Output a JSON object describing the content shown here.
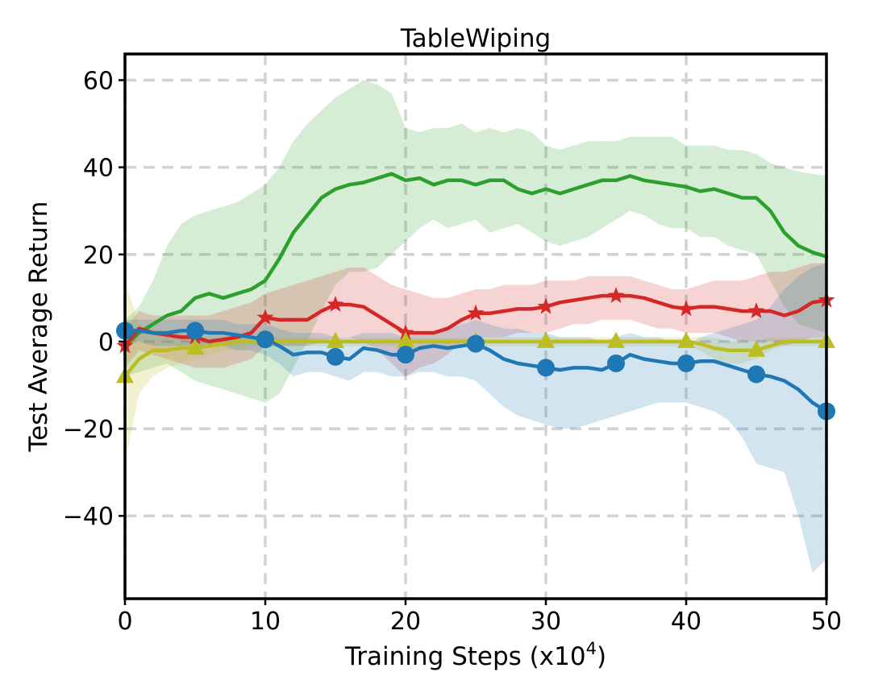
{
  "chart_data": {
    "type": "line",
    "title": "TableWiping",
    "xlabel": "Training Steps (x10",
    "xlabel_sup": "4",
    "xlabel_close": ")",
    "ylabel": "Test Average Return",
    "xlim": [
      0,
      50
    ],
    "ylim": [
      -59,
      66
    ],
    "xticks": [
      0,
      10,
      20,
      30,
      40,
      50
    ],
    "xtick_labels": [
      "0",
      "10",
      "20",
      "30",
      "40",
      "50"
    ],
    "yticks": [
      -40,
      -20,
      0,
      20,
      40,
      60
    ],
    "ytick_labels": [
      "−40",
      "−20",
      "0",
      "20",
      "40",
      "60"
    ],
    "grid": true,
    "x": [
      0,
      1,
      2,
      3,
      4,
      5,
      6,
      7,
      8,
      9,
      10,
      11,
      12,
      13,
      14,
      15,
      16,
      17,
      18,
      19,
      20,
      21,
      22,
      23,
      24,
      25,
      26,
      27,
      28,
      29,
      30,
      31,
      32,
      33,
      34,
      35,
      36,
      37,
      38,
      39,
      40,
      41,
      42,
      43,
      44,
      45,
      46,
      47,
      48,
      49,
      50
    ],
    "series": [
      {
        "name": "green",
        "color": "#2ca02c",
        "marker": "none",
        "mean": [
          -1,
          2,
          4,
          6,
          7,
          10,
          11,
          10,
          11,
          12,
          14,
          19,
          25,
          29,
          33,
          35,
          36,
          36.5,
          37.5,
          38.5,
          37,
          37.5,
          36,
          37,
          37,
          36,
          37,
          37,
          35,
          34,
          35,
          34,
          35,
          36,
          37,
          37,
          38,
          37,
          36.5,
          36,
          35.5,
          34.5,
          35,
          34,
          33,
          33,
          30,
          25,
          22,
          20.5,
          19.5
        ],
        "upper": [
          5,
          8,
          14,
          22,
          27,
          29,
          30,
          31,
          32,
          34,
          36,
          40,
          46,
          50,
          53,
          56,
          58,
          60,
          59,
          57,
          49,
          48,
          49,
          49,
          50,
          48,
          49,
          48,
          49,
          48,
          45,
          44,
          45,
          46,
          46,
          46,
          47,
          47,
          47,
          47,
          45,
          45,
          45,
          44,
          44,
          43,
          41,
          40,
          39,
          38.5,
          38
        ],
        "lower": [
          -8,
          -7,
          -6,
          -5,
          -7,
          -9,
          -10,
          -11,
          -12,
          -13,
          -14,
          -12,
          -6,
          0,
          7,
          13,
          16,
          16,
          17,
          20,
          23,
          26,
          28,
          26,
          27,
          28,
          25,
          26,
          27,
          25,
          23,
          22,
          23,
          24,
          26,
          28,
          30,
          29,
          27,
          26,
          26,
          24,
          24,
          22,
          21,
          20,
          14,
          8,
          4,
          3,
          2
        ]
      },
      {
        "name": "red",
        "color": "#d62728",
        "marker": "star",
        "mean": [
          -1,
          3,
          2,
          1.5,
          1,
          1,
          0,
          0.5,
          1,
          2,
          5.5,
          5,
          5,
          5,
          7,
          8.5,
          8.5,
          8,
          6,
          4,
          2,
          2,
          2,
          3,
          5,
          6.5,
          6.5,
          7,
          7.5,
          7.5,
          8,
          9,
          9.5,
          10,
          10.5,
          10.5,
          10.5,
          10,
          9,
          8,
          7.5,
          8,
          8,
          7.5,
          7,
          7,
          7,
          6,
          7,
          9,
          9.5
        ],
        "upper": [
          3,
          7,
          6,
          6,
          6,
          6,
          6,
          7,
          8,
          9,
          11,
          12,
          13,
          14,
          15,
          16,
          17,
          17,
          15,
          13,
          12,
          11,
          10,
          10,
          11,
          12,
          12,
          13,
          13,
          13,
          14,
          14,
          14,
          15,
          15,
          15,
          15,
          14,
          13,
          12,
          12,
          13,
          14,
          14,
          14,
          15,
          16,
          16,
          17,
          18,
          18
        ],
        "lower": [
          -6,
          -2,
          -3,
          -4,
          -5,
          -6,
          -6,
          -6,
          -5,
          -4,
          -1,
          -1,
          -1,
          -1,
          0,
          1,
          1,
          0,
          -2,
          -5,
          -8,
          -6,
          -5,
          -3,
          0,
          1,
          1,
          1,
          2,
          2,
          2,
          3,
          4,
          4,
          5,
          5,
          5,
          4,
          3,
          3,
          2,
          2,
          2,
          1,
          0,
          0,
          0,
          -1,
          0,
          1,
          1
        ]
      },
      {
        "name": "yellow",
        "color": "#bcbd22",
        "marker": "triangle",
        "mean": [
          -8,
          -4,
          -2,
          -2,
          -1.5,
          -1.5,
          -1,
          -0.5,
          0,
          0,
          0.5,
          0,
          0,
          0,
          0,
          0,
          0,
          0,
          0,
          0,
          0,
          0,
          0,
          0,
          0,
          0,
          0,
          0,
          0,
          0,
          0,
          0,
          0,
          0,
          0,
          0,
          0,
          0,
          0,
          0,
          0,
          -0.5,
          -1.5,
          -2,
          -2,
          -2,
          -1,
          0,
          0,
          0,
          0
        ],
        "upper": [
          14,
          4,
          3,
          2,
          2,
          1,
          1,
          1,
          1,
          1,
          1,
          1,
          1,
          1,
          1,
          1,
          1,
          1,
          1,
          1,
          1,
          1,
          1,
          1,
          1,
          1,
          1,
          1,
          1,
          1,
          1,
          1,
          1,
          1,
          1,
          1,
          1,
          1,
          1,
          1,
          1,
          1,
          1,
          0,
          0,
          0,
          1,
          1,
          1,
          1,
          1
        ],
        "lower": [
          -28,
          -12,
          -8,
          -6,
          -5,
          -4,
          -3,
          -2,
          -2,
          -1,
          -1,
          -1,
          -1,
          -1,
          -1,
          -1,
          -1,
          -1,
          -1,
          -1,
          -1,
          -1,
          -1,
          -1,
          -1,
          -1,
          -1,
          -1,
          -1,
          -1,
          -1,
          -1,
          -1,
          -1,
          -1,
          -1,
          -1,
          -1,
          -1,
          -1,
          -1,
          -2,
          -4,
          -5,
          -5,
          -4,
          -2,
          -1,
          -1,
          -1,
          -1
        ]
      },
      {
        "name": "blue",
        "color": "#1f77b4",
        "marker": "circle",
        "mean": [
          2.5,
          2.5,
          2,
          2,
          2.5,
          2.5,
          2,
          2,
          1.5,
          1,
          0.5,
          -1,
          -3,
          -2.5,
          -2.5,
          -3.5,
          -4,
          -1.5,
          -2,
          -3,
          -3,
          -1.5,
          -1,
          -1.5,
          -1,
          -0.5,
          -2,
          -4,
          -5,
          -5.5,
          -6,
          -6.5,
          -6,
          -6,
          -6.5,
          -5,
          -3,
          -4,
          -4.5,
          -5,
          -5,
          -4.5,
          -4.5,
          -5.5,
          -6.5,
          -7.5,
          -8,
          -9,
          -11,
          -14,
          -16
        ],
        "upper": [
          5,
          5,
          5,
          5,
          5,
          5,
          5,
          5,
          4,
          4,
          4,
          3,
          2,
          2,
          2,
          1,
          1,
          2,
          2,
          2,
          1,
          2,
          2,
          3,
          4,
          5,
          4,
          3,
          3,
          2,
          2,
          1,
          1,
          1,
          0,
          1,
          2,
          1,
          1,
          0,
          -1,
          1,
          2,
          3,
          4,
          5,
          8,
          12,
          15,
          17,
          18
        ],
        "lower": [
          0,
          0,
          -1,
          -1,
          -1,
          -1,
          -1,
          -1,
          -2,
          -2,
          -3,
          -5,
          -8,
          -7,
          -7,
          -8,
          -9,
          -7,
          -7,
          -8,
          -8,
          -7,
          -7,
          -8,
          -8,
          -9,
          -12,
          -15,
          -17,
          -18,
          -19,
          -20,
          -20,
          -19,
          -18,
          -17,
          -16,
          -15,
          -14,
          -14,
          -14,
          -15,
          -16,
          -18,
          -22,
          -28,
          -29,
          -30,
          -40,
          -53,
          -50
        ]
      }
    ],
    "markers_every": 5
  }
}
